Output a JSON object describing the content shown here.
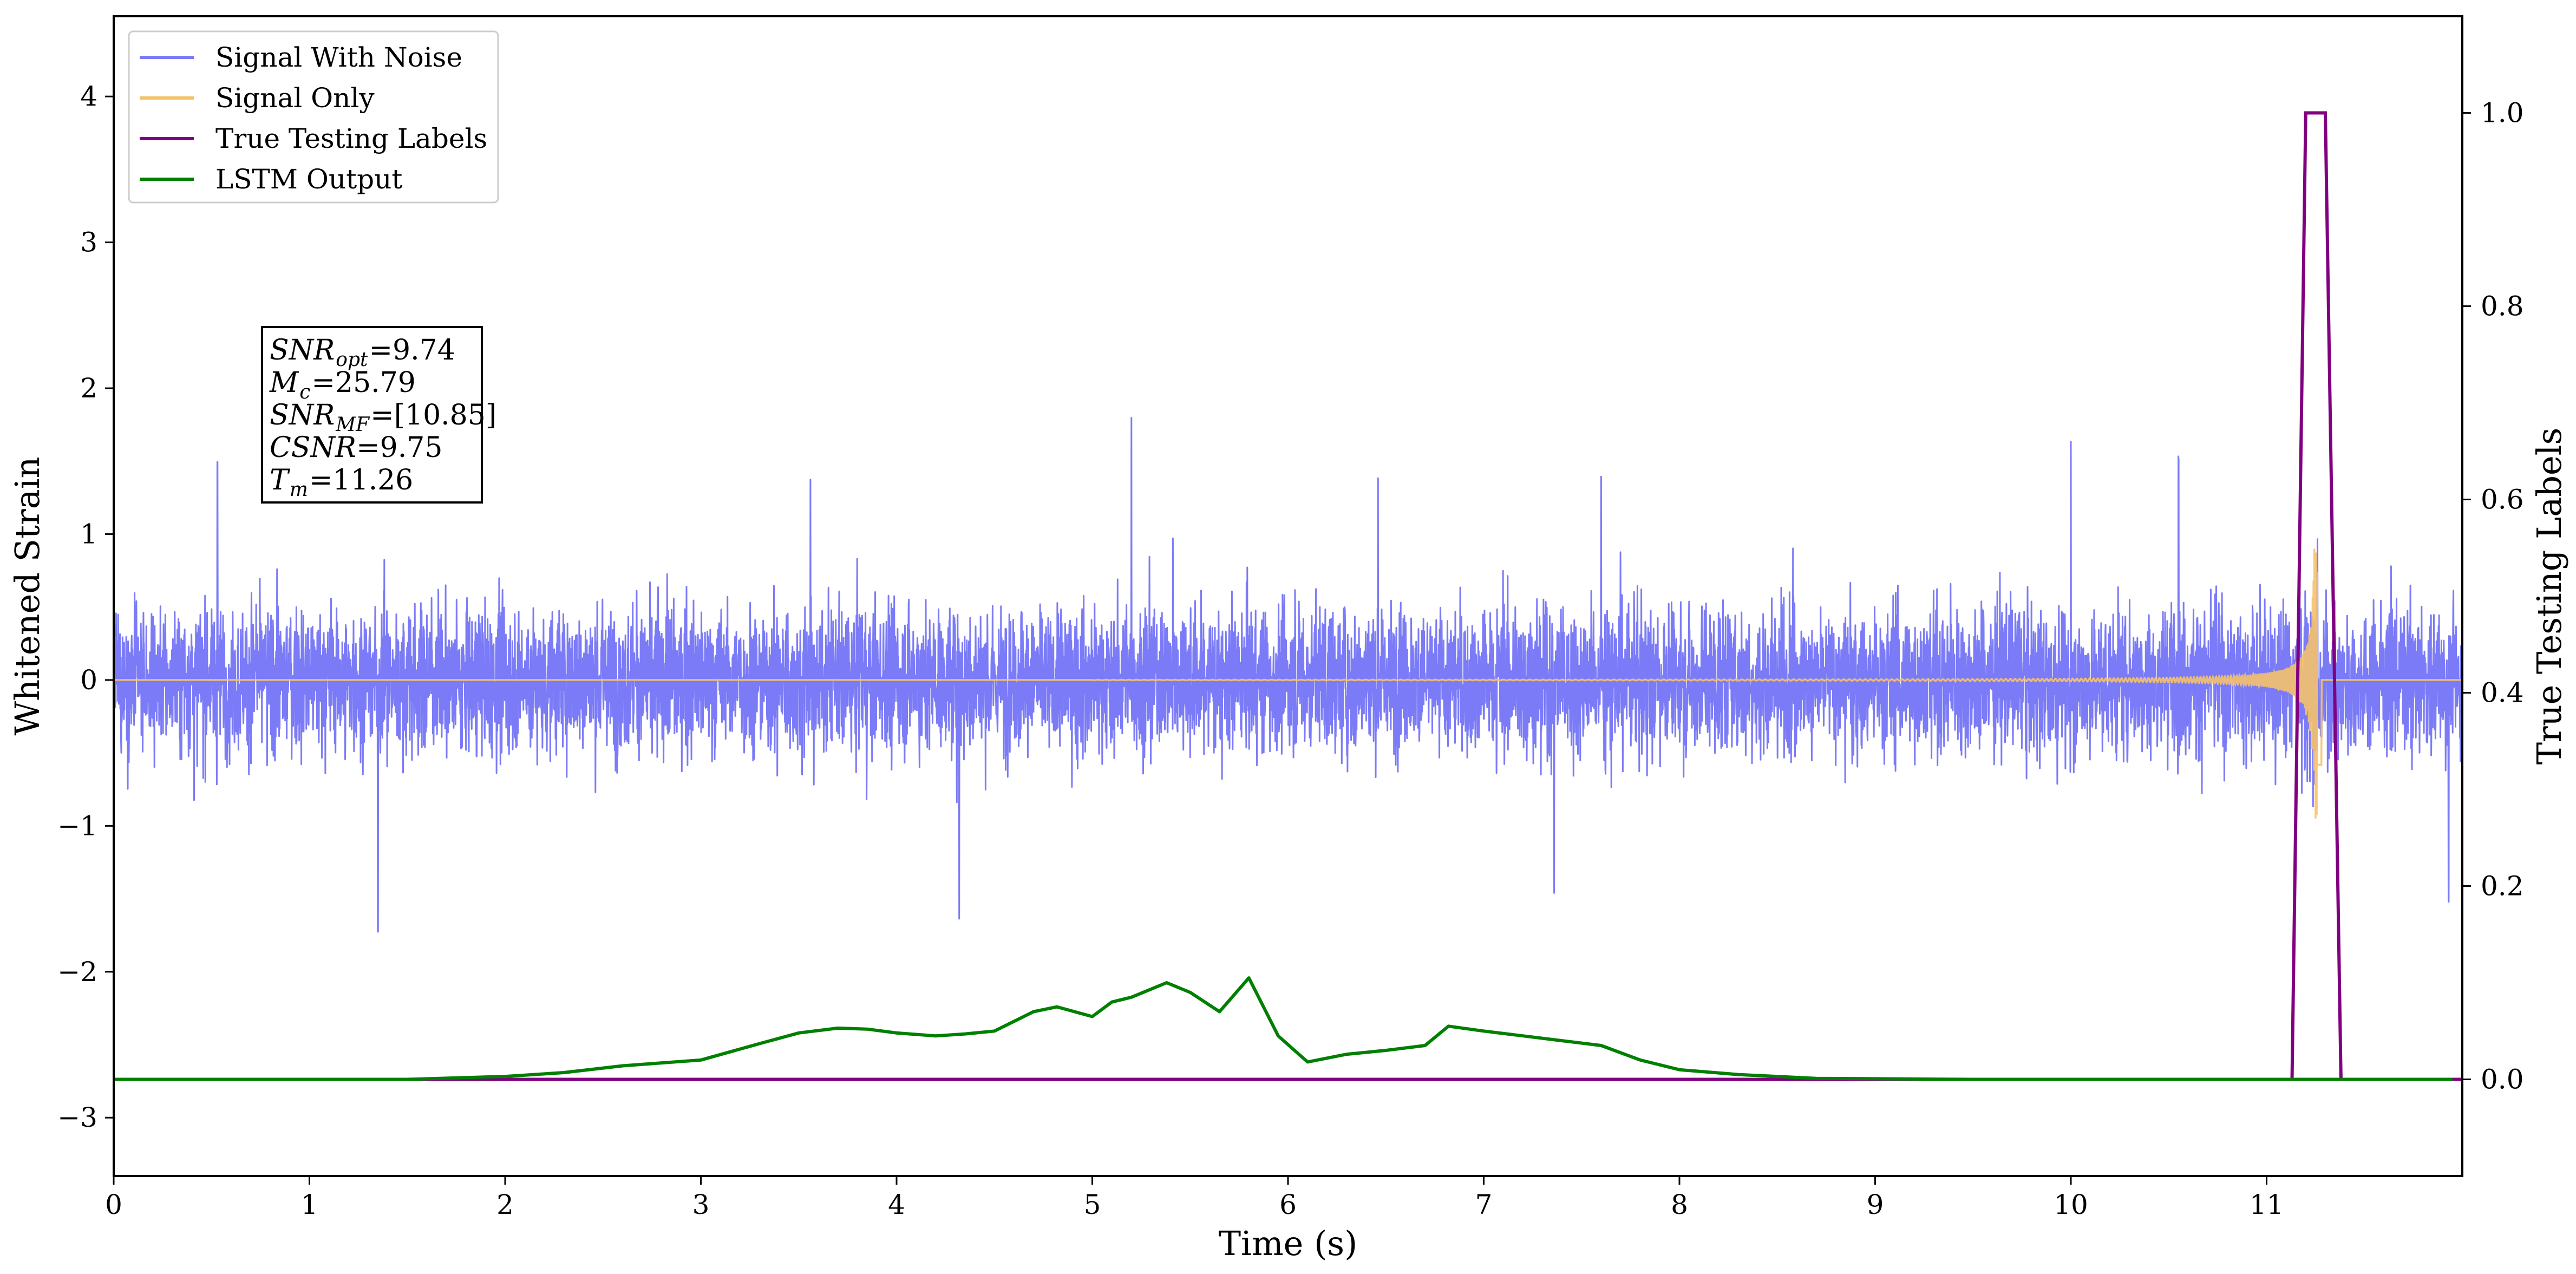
{
  "chart_data": {
    "type": "line",
    "xlabel": "Time (s)",
    "ylabel": "Whitened Strain",
    "y2label": "True Testing Labels",
    "xlim": [
      0,
      12
    ],
    "ylim": [
      -3.4,
      4.55
    ],
    "y2lim": [
      -0.1,
      1.1
    ],
    "x_ticks": [
      0,
      1,
      2,
      3,
      4,
      5,
      6,
      7,
      8,
      9,
      10,
      11
    ],
    "y_ticks": [
      -3,
      -2,
      -1,
      0,
      1,
      2,
      3,
      4
    ],
    "y2_ticks": [
      0.0,
      0.2,
      0.4,
      0.6,
      0.8,
      1.0
    ],
    "x_tick_labels": [
      "0",
      "1",
      "2",
      "3",
      "4",
      "5",
      "6",
      "7",
      "8",
      "9",
      "10",
      "11"
    ],
    "y_tick_labels": [
      "−3",
      "−2",
      "−1",
      "0",
      "1",
      "2",
      "3",
      "4"
    ],
    "y2_tick_labels": [
      "0.0",
      "0.2",
      "0.4",
      "0.6",
      "0.8",
      "1.0"
    ],
    "grid": false,
    "legend_position": "top-left",
    "series": [
      {
        "name": "Signal With Noise",
        "color": "#7b7bf7",
        "axis": "left",
        "noise_band": {
          "typical_amplitude": 0.55,
          "peak_max": 1.8,
          "peak_min": -1.72
        },
        "spikes": [
          [
            0.53,
            1.5
          ],
          [
            1.35,
            -1.72
          ],
          [
            3.56,
            1.38
          ],
          [
            4.32,
            -1.63
          ],
          [
            5.2,
            1.8
          ],
          [
            6.46,
            1.38
          ],
          [
            7.36,
            -1.45
          ],
          [
            7.6,
            1.35
          ],
          [
            10.0,
            1.7
          ],
          [
            10.55,
            1.6
          ],
          [
            11.26,
            1.25
          ],
          [
            11.93,
            -1.52
          ]
        ]
      },
      {
        "name": "Signal Only",
        "color": "#f5c26b",
        "axis": "left",
        "chirp": {
          "start_amplitude": 0.0,
          "merger_time": 11.26,
          "peak_amplitude": 0.95
        }
      },
      {
        "name": "True Testing Labels",
        "color": "#800080",
        "axis": "right",
        "x": [
          0,
          11.13,
          11.2,
          11.3,
          11.38,
          12.0
        ],
        "y": [
          0,
          0,
          1,
          1,
          0,
          0
        ]
      },
      {
        "name": "LSTM Output",
        "color": "#008000",
        "axis": "right",
        "x": [
          0,
          1.5,
          2.0,
          2.3,
          2.6,
          3.0,
          3.3,
          3.5,
          3.7,
          3.85,
          4.0,
          4.2,
          4.35,
          4.5,
          4.7,
          4.82,
          5.0,
          5.1,
          5.2,
          5.38,
          5.5,
          5.65,
          5.8,
          5.95,
          6.1,
          6.3,
          6.5,
          6.7,
          6.82,
          7.0,
          7.2,
          7.4,
          7.6,
          7.8,
          8.0,
          8.3,
          8.7,
          9.5,
          12.0
        ],
        "y": [
          0,
          0.0,
          0.003,
          0.007,
          0.014,
          0.02,
          0.037,
          0.048,
          0.053,
          0.052,
          0.048,
          0.045,
          0.047,
          0.05,
          0.07,
          0.075,
          0.065,
          0.08,
          0.085,
          0.1,
          0.09,
          0.07,
          0.105,
          0.045,
          0.018,
          0.026,
          0.03,
          0.035,
          0.055,
          0.05,
          0.045,
          0.04,
          0.035,
          0.02,
          0.01,
          0.005,
          0.001,
          0.0,
          0.0
        ]
      }
    ]
  },
  "legend": {
    "items": [
      {
        "label": "Signal With Noise",
        "color": "#7b7bf7"
      },
      {
        "label": "Signal Only",
        "color": "#f5c26b"
      },
      {
        "label": "True Testing Labels",
        "color": "#800080"
      },
      {
        "label": "LSTM Output",
        "color": "#008000"
      }
    ]
  },
  "annotation": {
    "lines": [
      {
        "var": "SNR",
        "sub": "opt",
        "value": "=9.74"
      },
      {
        "var": "M",
        "sub": "c",
        "value": "=25.79"
      },
      {
        "var": "SNR",
        "sub": "MF",
        "value": "=[10.85]"
      },
      {
        "var": "CSNR",
        "sub": "",
        "value": "=9.75"
      },
      {
        "var": "T",
        "sub": "m",
        "value": "=11.26"
      }
    ]
  }
}
